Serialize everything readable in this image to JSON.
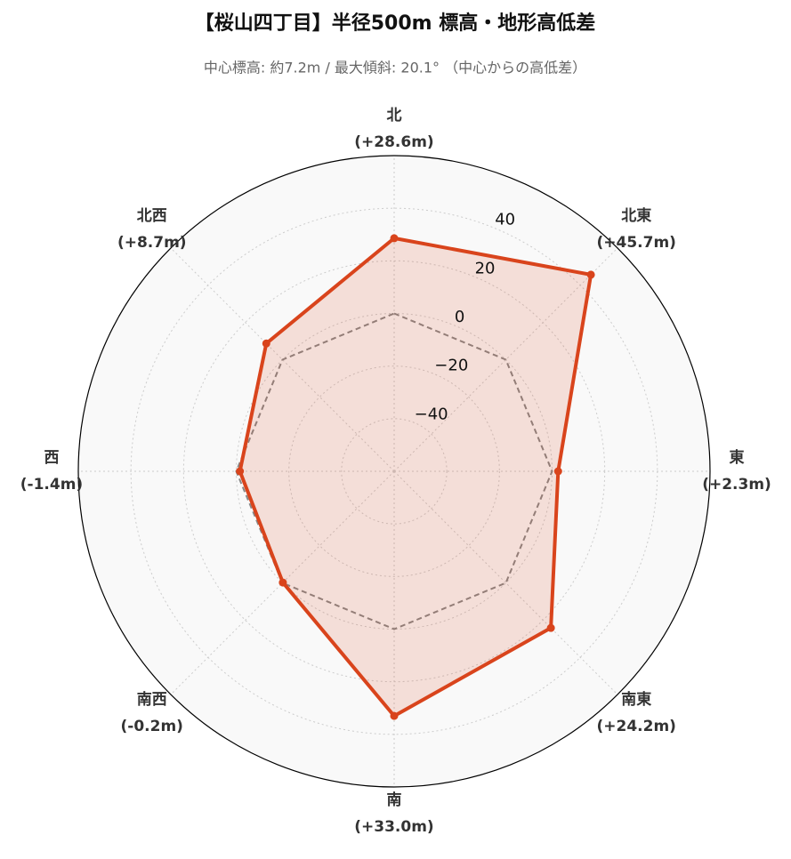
{
  "chart_data": {
    "type": "radar",
    "title": "【桜山四丁目】半径500m 標高・地形高低差",
    "subtitle": "中心標高: 約7.2m / 最大傾斜: 20.1° （中心からの高低差）",
    "categories": [
      "北",
      "北東",
      "東",
      "南東",
      "南",
      "南西",
      "西",
      "北西"
    ],
    "values": [
      28.6,
      45.7,
      2.3,
      24.2,
      33.0,
      -0.2,
      -1.4,
      8.7
    ],
    "value_labels": [
      "(+28.6m)",
      "(+45.7m)",
      "(+2.3m)",
      "(+24.2m)",
      "(+33.0m)",
      "(-0.2m)",
      "(-1.4m)",
      "(+8.7m)"
    ],
    "color": "#d9441c",
    "reference_line": 0,
    "reference_color": "#888888",
    "ylim": [
      -60,
      60
    ],
    "yticks": [
      {
        "value": -40,
        "label": "−40"
      },
      {
        "value": -20,
        "label": "−20"
      },
      0,
      20,
      40
    ],
    "grid": true
  }
}
